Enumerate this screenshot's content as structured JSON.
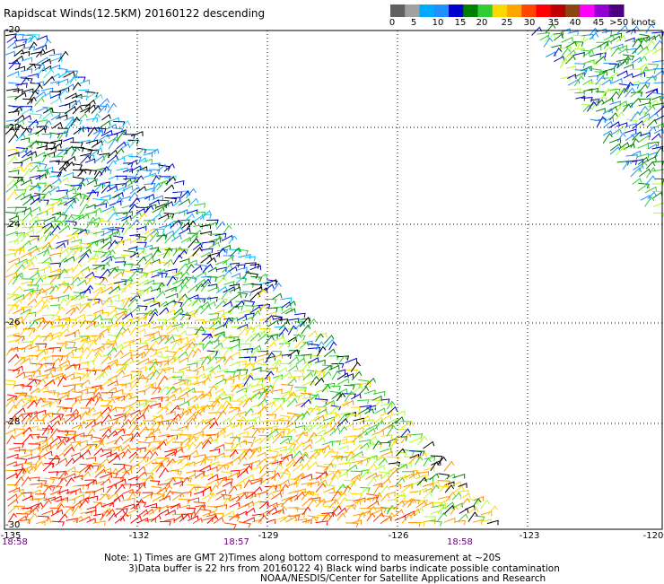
{
  "title": "Rapidscat Winds(12.5KM) 20160122 descending",
  "colorbar": {
    "labels": [
      "0",
      "5",
      "10",
      "15",
      "20",
      "25",
      "30",
      "35",
      "40",
      "45",
      ">50 knots"
    ],
    "colors": [
      "#606060",
      "#a0a0a0",
      "#00aaff",
      "#1e90ff",
      "#0000cd",
      "#008000",
      "#32cd32",
      "#ffd700",
      "#ffa500",
      "#ff4500",
      "#ff0000",
      "#c00000",
      "#8b4513",
      "#ff00ff",
      "#9400d3",
      "#4b0082"
    ]
  },
  "lat_labels": [
    "-20",
    "-22",
    "-24",
    "-26",
    "-28",
    "-30"
  ],
  "lon_labels": [
    "-135",
    "-132",
    "-129",
    "-126",
    "-123",
    "-120"
  ],
  "time_labels": [
    "18:58",
    "18:57",
    "18:58"
  ],
  "notes": [
    "Note: 1) Times are GMT 2)Times along bottom correspond to measurement at ~20S",
    "3)Data buffer is 22 hrs from 20160122 4) Black wind barbs indicate possible contamination",
    "NOAA/NESDIS/Center for Satellite Applications and Research"
  ]
}
